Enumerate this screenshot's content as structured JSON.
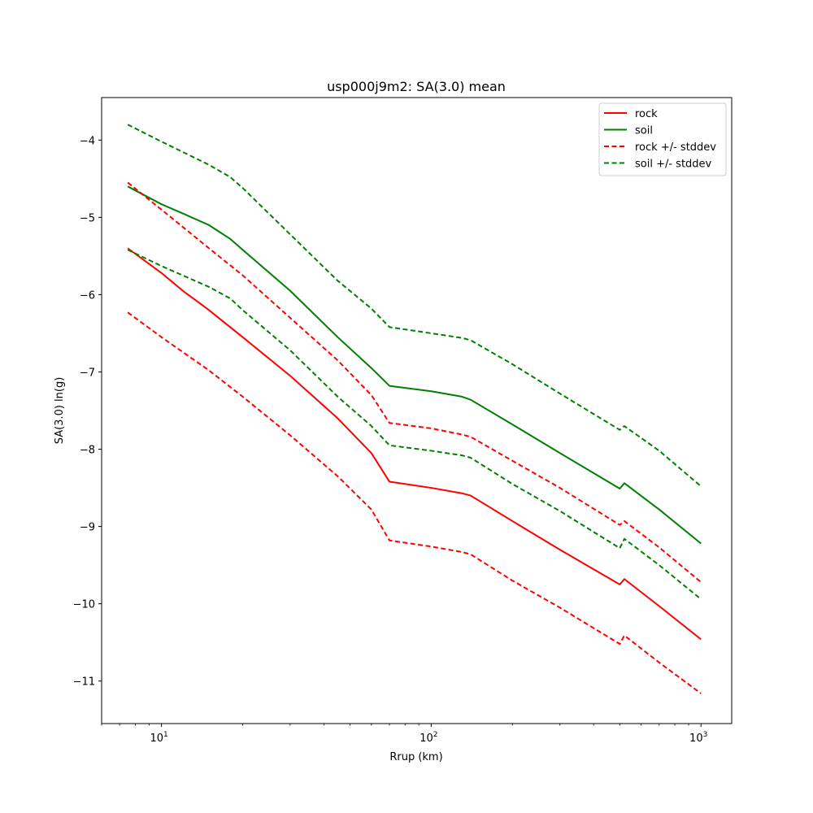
{
  "chart_data": {
    "type": "line",
    "title": "usp000j9m2: SA(3.0) mean",
    "xlabel": "Rrup (km)",
    "ylabel": "SA(3.0) ln(g)",
    "xscale": "log",
    "xlim": [
      6.0,
      1300
    ],
    "ylim": [
      -11.55,
      -3.45
    ],
    "x_ticks": [
      {
        "base": "10",
        "exp": "1",
        "value": 10
      },
      {
        "base": "10",
        "exp": "2",
        "value": 100
      },
      {
        "base": "10",
        "exp": "3",
        "value": 1000
      }
    ],
    "y_ticks": [
      {
        "label": "−4",
        "value": -4
      },
      {
        "label": "−5",
        "value": -5
      },
      {
        "label": "−6",
        "value": -6
      },
      {
        "label": "−7",
        "value": -7
      },
      {
        "label": "−8",
        "value": -8
      },
      {
        "label": "−9",
        "value": -9
      },
      {
        "label": "−10",
        "value": -10
      },
      {
        "label": "−11",
        "value": -11
      }
    ],
    "grid": false,
    "legend_position": "top-right",
    "series": [
      {
        "name": "rock",
        "color": "#ff0000",
        "dash": false,
        "points": [
          [
            7.5,
            -5.4
          ],
          [
            10,
            -5.72
          ],
          [
            12,
            -5.95
          ],
          [
            15,
            -6.2
          ],
          [
            20,
            -6.55
          ],
          [
            30,
            -7.05
          ],
          [
            45,
            -7.6
          ],
          [
            60,
            -8.05
          ],
          [
            70,
            -8.42
          ],
          [
            100,
            -8.5
          ],
          [
            130,
            -8.57
          ],
          [
            140,
            -8.6
          ],
          [
            200,
            -8.93
          ],
          [
            300,
            -9.3
          ],
          [
            500,
            -9.75
          ],
          [
            520,
            -9.68
          ],
          [
            700,
            -10.03
          ],
          [
            1000,
            -10.46
          ]
        ]
      },
      {
        "name": "soil",
        "color": "#008000",
        "dash": false,
        "points": [
          [
            7.5,
            -4.6
          ],
          [
            10,
            -4.83
          ],
          [
            12,
            -4.95
          ],
          [
            15,
            -5.1
          ],
          [
            18,
            -5.28
          ],
          [
            20,
            -5.42
          ],
          [
            30,
            -5.95
          ],
          [
            45,
            -6.55
          ],
          [
            60,
            -6.95
          ],
          [
            70,
            -7.18
          ],
          [
            100,
            -7.25
          ],
          [
            130,
            -7.32
          ],
          [
            140,
            -7.36
          ],
          [
            200,
            -7.68
          ],
          [
            300,
            -8.05
          ],
          [
            500,
            -8.51
          ],
          [
            520,
            -8.44
          ],
          [
            700,
            -8.78
          ],
          [
            1000,
            -9.22
          ]
        ]
      },
      {
        "name": "rock +/- stddev",
        "color": "#ff0000",
        "dash": true,
        "points": [
          [
            7.5,
            -4.55
          ],
          [
            10,
            -4.9
          ],
          [
            15,
            -5.4
          ],
          [
            20,
            -5.75
          ],
          [
            30,
            -6.3
          ],
          [
            45,
            -6.85
          ],
          [
            60,
            -7.3
          ],
          [
            70,
            -7.66
          ],
          [
            100,
            -7.73
          ],
          [
            130,
            -7.81
          ],
          [
            140,
            -7.84
          ],
          [
            200,
            -8.15
          ],
          [
            300,
            -8.5
          ],
          [
            500,
            -8.98
          ],
          [
            520,
            -8.93
          ],
          [
            700,
            -9.27
          ],
          [
            1000,
            -9.72
          ]
        ]
      },
      {
        "name": "",
        "color": "#ff0000",
        "dash": true,
        "points": [
          [
            7.5,
            -6.23
          ],
          [
            10,
            -6.55
          ],
          [
            15,
            -6.98
          ],
          [
            20,
            -7.32
          ],
          [
            30,
            -7.82
          ],
          [
            45,
            -8.35
          ],
          [
            60,
            -8.78
          ],
          [
            70,
            -9.18
          ],
          [
            100,
            -9.26
          ],
          [
            130,
            -9.33
          ],
          [
            140,
            -9.36
          ],
          [
            200,
            -9.7
          ],
          [
            300,
            -10.05
          ],
          [
            500,
            -10.52
          ],
          [
            520,
            -10.41
          ],
          [
            700,
            -10.76
          ],
          [
            1000,
            -11.16
          ]
        ]
      },
      {
        "name": "soil +/- stddev",
        "color": "#008000",
        "dash": true,
        "points": [
          [
            7.5,
            -3.8
          ],
          [
            10,
            -4.02
          ],
          [
            15,
            -4.32
          ],
          [
            18,
            -4.48
          ],
          [
            20,
            -4.62
          ],
          [
            30,
            -5.22
          ],
          [
            45,
            -5.82
          ],
          [
            60,
            -6.18
          ],
          [
            70,
            -6.42
          ],
          [
            100,
            -6.5
          ],
          [
            130,
            -6.56
          ],
          [
            140,
            -6.59
          ],
          [
            200,
            -6.9
          ],
          [
            300,
            -7.28
          ],
          [
            500,
            -7.75
          ],
          [
            520,
            -7.7
          ],
          [
            700,
            -8.02
          ],
          [
            1000,
            -8.48
          ]
        ]
      },
      {
        "name": "",
        "color": "#008000",
        "dash": true,
        "points": [
          [
            7.5,
            -5.42
          ],
          [
            10,
            -5.63
          ],
          [
            15,
            -5.9
          ],
          [
            18,
            -6.05
          ],
          [
            20,
            -6.2
          ],
          [
            30,
            -6.72
          ],
          [
            45,
            -7.32
          ],
          [
            60,
            -7.7
          ],
          [
            70,
            -7.95
          ],
          [
            100,
            -8.02
          ],
          [
            130,
            -8.08
          ],
          [
            140,
            -8.11
          ],
          [
            200,
            -8.45
          ],
          [
            300,
            -8.8
          ],
          [
            500,
            -9.28
          ],
          [
            520,
            -9.16
          ],
          [
            700,
            -9.5
          ],
          [
            1000,
            -9.94
          ]
        ]
      }
    ]
  }
}
